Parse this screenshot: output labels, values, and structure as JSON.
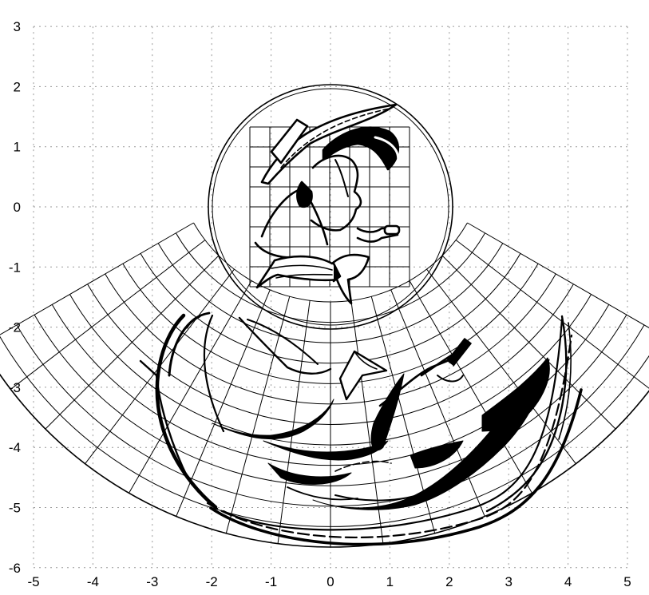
{
  "figure": {
    "type": "diagram",
    "description_visible": "cartoon portrait in a circle above its warped fan-shaped projection, on a dotted coordinate grid",
    "axes": {
      "x_ticks": [
        "-5",
        "-4",
        "-3",
        "-2",
        "-1",
        "0",
        "1",
        "2",
        "3",
        "4",
        "5"
      ],
      "y_ticks": [
        "3",
        "2",
        "1",
        "0",
        "-1",
        "-2",
        "-3",
        "-4",
        "-5",
        "-6"
      ],
      "x_range": [
        -5,
        5
      ],
      "y_range": [
        -6,
        3
      ],
      "grid": "dotted"
    },
    "colors": {
      "ink": "#000000",
      "grid": "#9a9a9a",
      "background": "#ffffff"
    }
  }
}
